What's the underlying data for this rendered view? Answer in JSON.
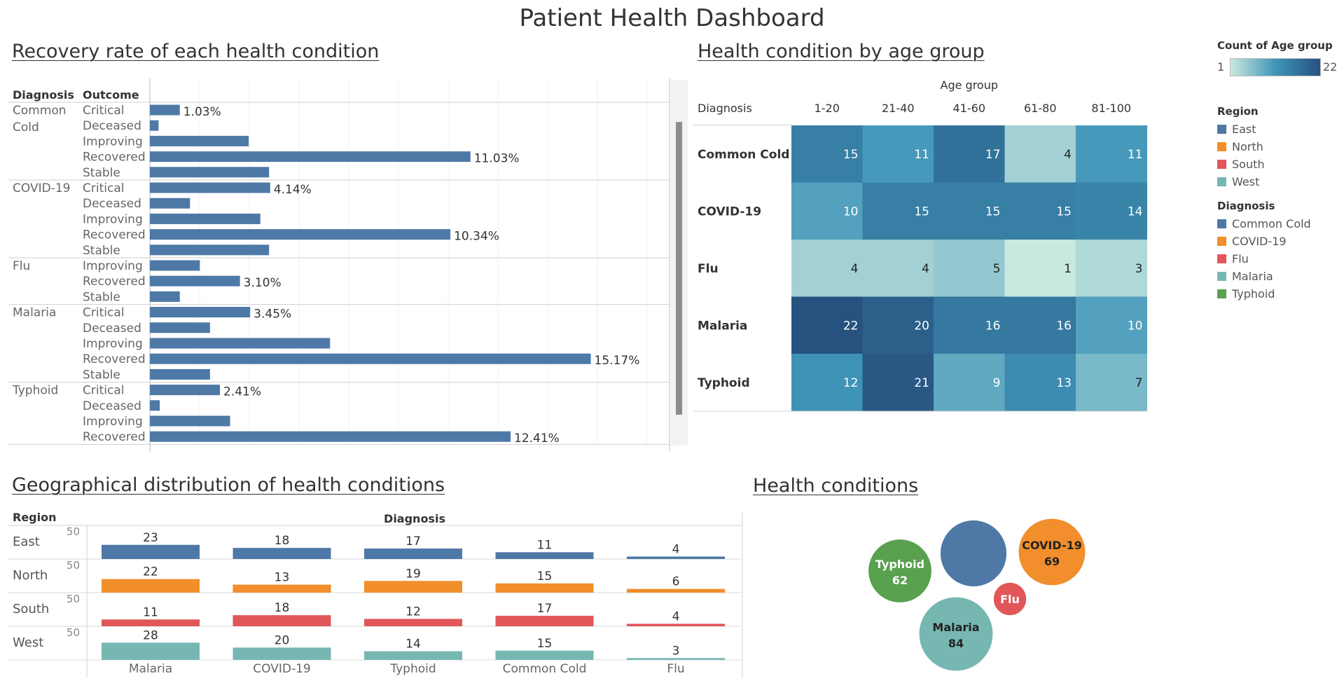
{
  "dashboard": {
    "title": "Patient Health Dashboard",
    "sections": {
      "recovery": "Recovery rate of each health condition",
      "heatmap": "Health condition by age group",
      "geo": "Geographical distribution of health conditions",
      "bubbles": "Health conditions"
    }
  },
  "legends": {
    "count_title": "Count of Age group",
    "count_min": "1",
    "count_max": "22",
    "region_title": "Region",
    "regions": [
      {
        "name": "East",
        "color": "#4e79a7"
      },
      {
        "name": "North",
        "color": "#f28e2b"
      },
      {
        "name": "South",
        "color": "#e15759"
      },
      {
        "name": "West",
        "color": "#76b7b2"
      }
    ],
    "diagnosis_title": "Diagnosis",
    "diagnoses": [
      {
        "name": "Common Cold",
        "color": "#4e79a7"
      },
      {
        "name": "COVID-19",
        "color": "#f28e2b"
      },
      {
        "name": "Flu",
        "color": "#e15759"
      },
      {
        "name": "Malaria",
        "color": "#76b7b2"
      },
      {
        "name": "Typhoid",
        "color": "#59a14f"
      }
    ]
  },
  "chart_data": [
    {
      "type": "bar",
      "orientation": "horizontal",
      "title": "Recovery rate of each health condition",
      "row_headers": [
        "Diagnosis",
        "Outcome"
      ],
      "color": "#4e79a7",
      "groups": [
        {
          "diagnosis": "Common Cold",
          "rows": [
            {
              "outcome": "Critical",
              "value": 1.03,
              "label": "1.03%"
            },
            {
              "outcome": "Deceased",
              "value": 0.3,
              "label": ""
            },
            {
              "outcome": "Improving",
              "value": 3.4,
              "label": ""
            },
            {
              "outcome": "Recovered",
              "value": 11.03,
              "label": "11.03%"
            },
            {
              "outcome": "Stable",
              "value": 4.1,
              "label": ""
            }
          ]
        },
        {
          "diagnosis": "COVID-19",
          "rows": [
            {
              "outcome": "Critical",
              "value": 4.14,
              "label": "4.14%"
            },
            {
              "outcome": "Deceased",
              "value": 1.38,
              "label": ""
            },
            {
              "outcome": "Improving",
              "value": 3.8,
              "label": ""
            },
            {
              "outcome": "Recovered",
              "value": 10.34,
              "label": "10.34%"
            },
            {
              "outcome": "Stable",
              "value": 4.1,
              "label": ""
            }
          ]
        },
        {
          "diagnosis": "Flu",
          "rows": [
            {
              "outcome": "Improving",
              "value": 1.72,
              "label": ""
            },
            {
              "outcome": "Recovered",
              "value": 3.1,
              "label": "3.10%"
            },
            {
              "outcome": "Stable",
              "value": 1.03,
              "label": ""
            }
          ]
        },
        {
          "diagnosis": "Malaria",
          "rows": [
            {
              "outcome": "Critical",
              "value": 3.45,
              "label": "3.45%"
            },
            {
              "outcome": "Deceased",
              "value": 2.07,
              "label": ""
            },
            {
              "outcome": "Improving",
              "value": 6.2,
              "label": ""
            },
            {
              "outcome": "Recovered",
              "value": 15.17,
              "label": "15.17%"
            },
            {
              "outcome": "Stable",
              "value": 2.07,
              "label": ""
            }
          ]
        },
        {
          "diagnosis": "Typhoid",
          "rows": [
            {
              "outcome": "Critical",
              "value": 2.41,
              "label": "2.41%"
            },
            {
              "outcome": "Deceased",
              "value": 0.34,
              "label": ""
            },
            {
              "outcome": "Improving",
              "value": 2.76,
              "label": ""
            },
            {
              "outcome": "Recovered",
              "value": 12.41,
              "label": "12.41%"
            }
          ]
        }
      ]
    },
    {
      "type": "heatmap",
      "title": "Health condition by age group",
      "column_header": "Age group",
      "row_header": "Diagnosis",
      "columns": [
        "1-20",
        "21-40",
        "41-60",
        "61-80",
        "81-100"
      ],
      "rows": [
        "Common Cold",
        "COVID-19",
        "Flu",
        "Malaria",
        "Typhoid"
      ],
      "values": [
        [
          15,
          11,
          17,
          4,
          11
        ],
        [
          10,
          15,
          15,
          15,
          14
        ],
        [
          4,
          4,
          5,
          1,
          3
        ],
        [
          22,
          20,
          16,
          16,
          10
        ],
        [
          12,
          21,
          9,
          13,
          7
        ]
      ],
      "range": [
        1,
        22
      ],
      "colors": [
        "#c9e8df",
        "#3f95b8",
        "#27527f"
      ]
    },
    {
      "type": "bar",
      "title": "Geographical distribution of health conditions",
      "row_header": "Region",
      "column_header": "Diagnosis",
      "axis_tick": "50",
      "categories": [
        "Malaria",
        "COVID-19",
        "Typhoid",
        "Common Cold",
        "Flu"
      ],
      "series": [
        {
          "name": "East",
          "color": "#4e79a7",
          "values": [
            23,
            18,
            17,
            11,
            4
          ]
        },
        {
          "name": "North",
          "color": "#f28e2b",
          "values": [
            22,
            13,
            19,
            15,
            6
          ]
        },
        {
          "name": "South",
          "color": "#e15759",
          "values": [
            11,
            18,
            12,
            17,
            4
          ]
        },
        {
          "name": "West",
          "color": "#76b7b2",
          "values": [
            28,
            20,
            14,
            15,
            3
          ]
        }
      ]
    },
    {
      "type": "bubble",
      "title": "Health conditions",
      "items": [
        {
          "name": "Common Cold",
          "value": 68,
          "color": "#4e79a7",
          "show_label": false
        },
        {
          "name": "COVID-19",
          "value": 69,
          "color": "#f28e2b",
          "show_label": true
        },
        {
          "name": "Typhoid",
          "value": 62,
          "color": "#59a14f",
          "show_label": true
        },
        {
          "name": "Flu",
          "value": 17,
          "color": "#e15759",
          "show_label": true,
          "hide_value": true
        },
        {
          "name": "Malaria",
          "value": 84,
          "color": "#76b7b2",
          "show_label": true
        }
      ]
    }
  ]
}
